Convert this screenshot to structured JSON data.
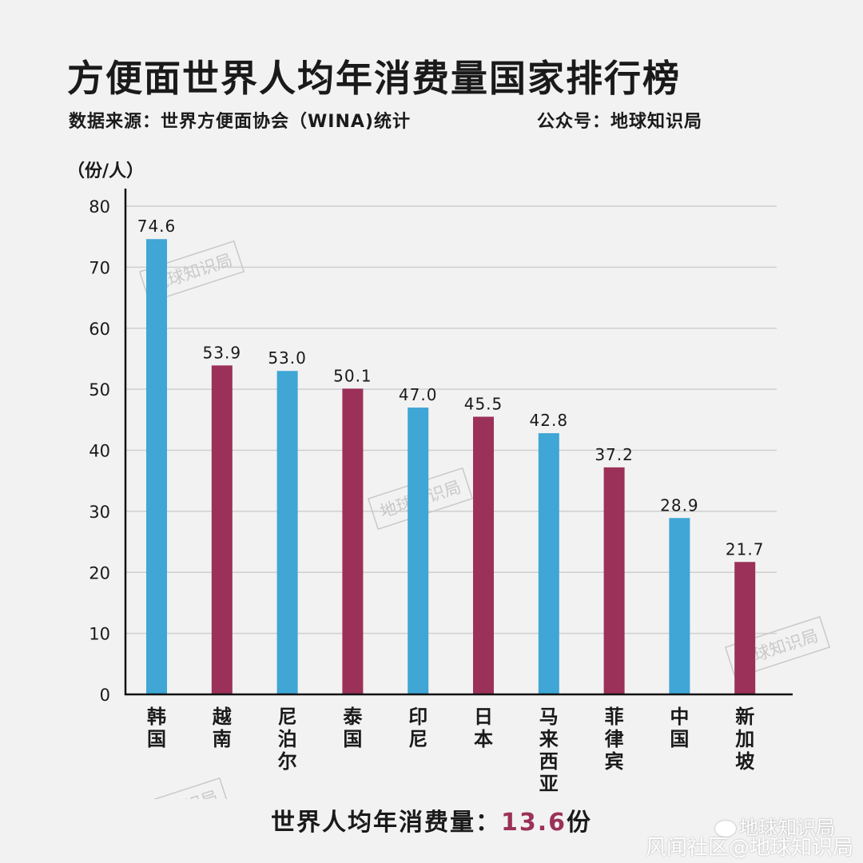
{
  "header": {
    "title": "方便面世界人均年消费量国家排行榜",
    "source": "数据来源：世界方便面协会（WINA)统计",
    "account": "公众号：地球知识局"
  },
  "watermark": "地球知识局",
  "footer": {
    "prefix": "世界人均年消费量：",
    "value": "13.6",
    "suffix": "份"
  },
  "credit": {
    "line1": "地球知识局",
    "line2": "风闻社区@地球知识局"
  },
  "chart_data": {
    "type": "bar",
    "ylabel": "（份/人）",
    "ylim": [
      0,
      80
    ],
    "yticks": [
      0,
      10,
      20,
      30,
      40,
      50,
      60,
      70,
      80
    ],
    "grid": true,
    "categories": [
      "韩国",
      "越南",
      "尼泊尔",
      "泰国",
      "印尼",
      "日本",
      "马来西亚",
      "菲律宾",
      "中国",
      "新加坡"
    ],
    "values": [
      74.6,
      53.9,
      53.0,
      50.1,
      47.0,
      45.5,
      42.8,
      37.2,
      28.9,
      21.7
    ],
    "value_labels": [
      "74.6",
      "53.9",
      "53.0",
      "50.1",
      "47.0",
      "45.5",
      "42.8",
      "37.2",
      "28.9",
      "21.7"
    ],
    "colors": [
      "#3fa6d5",
      "#9b3158"
    ]
  }
}
